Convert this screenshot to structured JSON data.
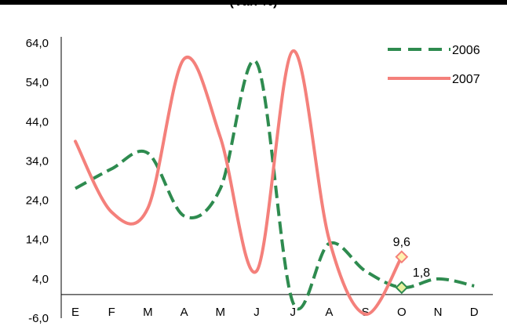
{
  "chart_data": {
    "type": "line",
    "title": "(Var. %)",
    "categories": [
      "E",
      "F",
      "M",
      "A",
      "M",
      "J",
      "J",
      "A",
      "S",
      "O",
      "N",
      "D"
    ],
    "yticks": [
      "-6,0",
      "4,0",
      "14,0",
      "24,0",
      "34,0",
      "44,0",
      "54,0",
      "64,0"
    ],
    "ylim": [
      -6,
      64
    ],
    "grid": false,
    "legend_position": "top-right",
    "series": [
      {
        "name": "2006",
        "color": "#2e8b4f",
        "dash": true,
        "values": [
          27,
          32,
          36,
          20,
          27,
          59,
          -2,
          13,
          6,
          1.8,
          4,
          2.2
        ]
      },
      {
        "name": "2007",
        "color": "#f4807b",
        "dash": false,
        "values": [
          39,
          21,
          22,
          60,
          40,
          6,
          62,
          14,
          -5,
          9.6,
          null,
          null
        ]
      }
    ],
    "annotations": [
      {
        "series": 1,
        "index": 9,
        "label": "9,6"
      },
      {
        "series": 0,
        "index": 9,
        "label": "1,8"
      }
    ]
  }
}
